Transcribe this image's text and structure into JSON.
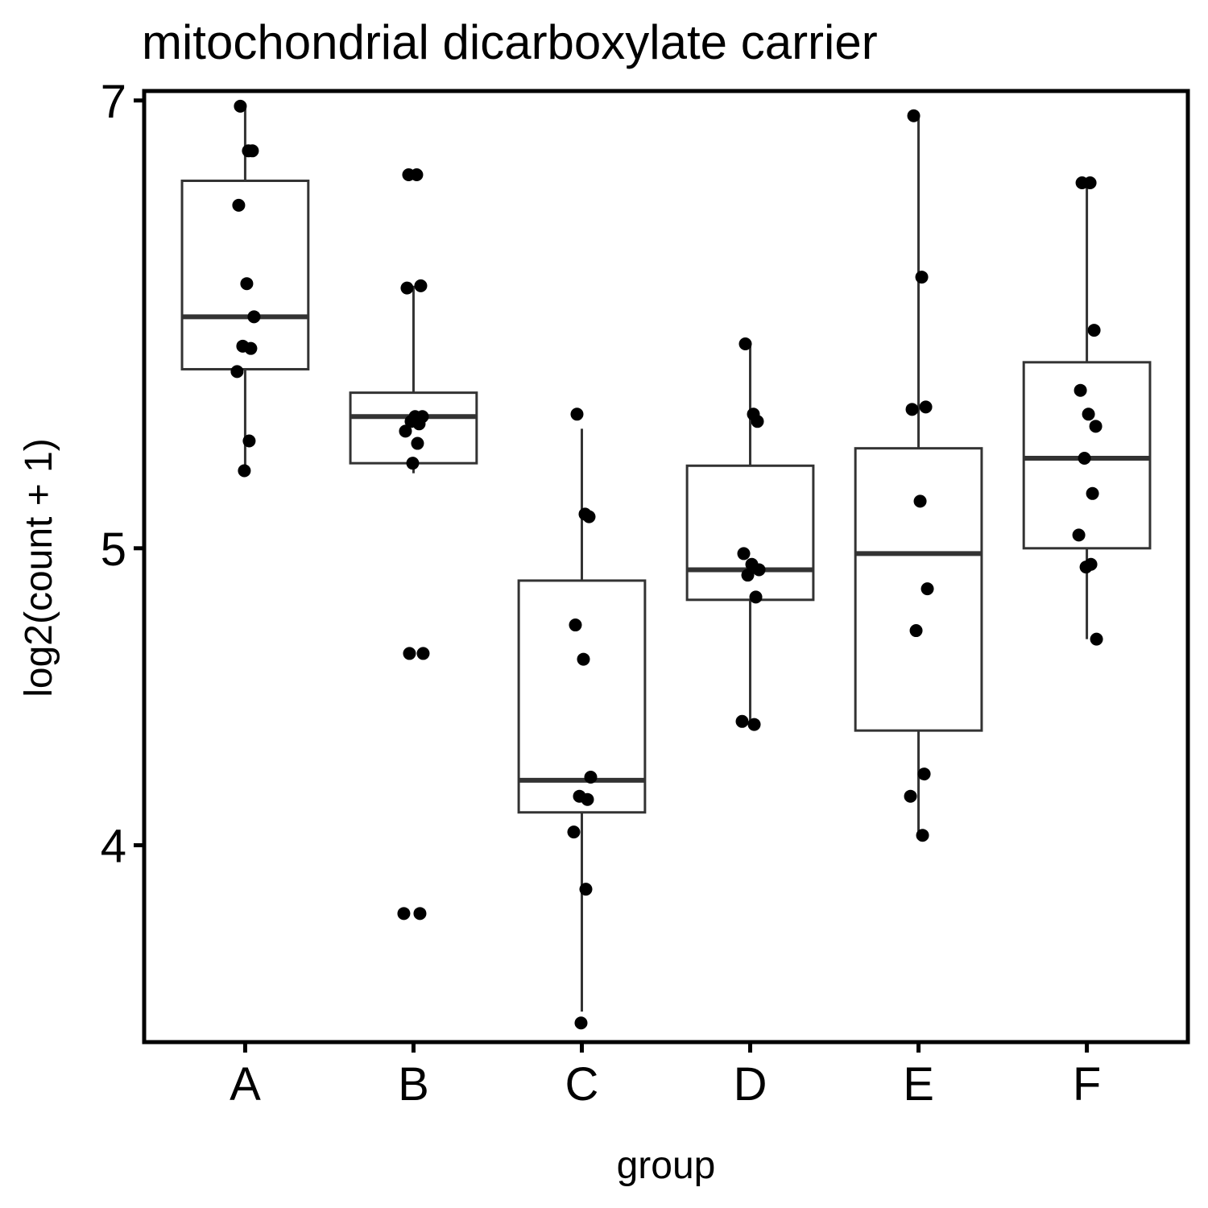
{
  "chart_data": {
    "type": "box",
    "title": "mitochondrial dicarboxylate carrier",
    "xlabel": "group",
    "ylabel": "log2(count + 1)",
    "y_scale": "log",
    "ylim": [
      3.45,
      7.05
    ],
    "yticks": [
      4,
      5,
      7
    ],
    "ytick_labels": [
      "4",
      "5",
      "7"
    ],
    "categories": [
      "A",
      "B",
      "C",
      "D",
      "E",
      "F"
    ],
    "grid": false,
    "legend": "none",
    "box_stats": [
      {
        "group": "A",
        "lower_whisker": 5.3,
        "q1": 5.72,
        "median": 5.95,
        "q3": 6.59,
        "upper_whisker": 6.97
      },
      {
        "group": "B",
        "lower_whisker": 5.29,
        "q1": 5.33,
        "median": 5.52,
        "q3": 5.62,
        "upper_whisker": 6.09
      },
      {
        "group": "C",
        "lower_whisker": 3.53,
        "q1": 4.1,
        "median": 4.2,
        "q3": 4.88,
        "upper_whisker": 5.47
      },
      {
        "group": "D",
        "lower_whisker": 4.39,
        "q1": 4.81,
        "median": 4.92,
        "q3": 5.32,
        "upper_whisker": 5.83
      },
      {
        "group": "E",
        "lower_whisker": 4.03,
        "q1": 4.36,
        "median": 4.98,
        "q3": 5.39,
        "upper_whisker": 6.92
      },
      {
        "group": "F",
        "lower_whisker": 4.67,
        "q1": 5.0,
        "median": 5.35,
        "q3": 5.75,
        "upper_whisker": 6.58
      }
    ],
    "points": [
      {
        "group": "A",
        "values": [
          6.97,
          6.74,
          6.74,
          6.47,
          6.1,
          5.95,
          5.82,
          5.81,
          5.71,
          5.42,
          5.3
        ]
      },
      {
        "group": "B",
        "values": [
          6.62,
          6.62,
          6.09,
          6.08,
          5.52,
          5.52,
          5.5,
          5.49,
          5.46,
          5.41,
          5.33,
          4.62,
          4.62,
          3.8,
          3.8
        ]
      },
      {
        "group": "C",
        "values": [
          5.53,
          5.13,
          5.12,
          4.72,
          4.6,
          4.21,
          4.15,
          4.14,
          4.04,
          3.87,
          3.5
        ]
      },
      {
        "group": "D",
        "values": [
          5.83,
          5.53,
          5.5,
          4.98,
          4.94,
          4.92,
          4.9,
          4.82,
          4.39,
          4.38
        ]
      },
      {
        "group": "E",
        "values": [
          6.92,
          6.13,
          5.56,
          5.55,
          5.18,
          4.85,
          4.7,
          4.22,
          4.15,
          4.03
        ]
      },
      {
        "group": "F",
        "values": [
          6.58,
          6.58,
          5.89,
          5.63,
          5.53,
          5.48,
          5.35,
          5.21,
          5.05,
          4.94,
          4.93,
          4.67
        ]
      }
    ],
    "colors": {
      "box_stroke": "#333333",
      "point": "#000000",
      "axis": "#000000",
      "background": "#ffffff"
    }
  }
}
